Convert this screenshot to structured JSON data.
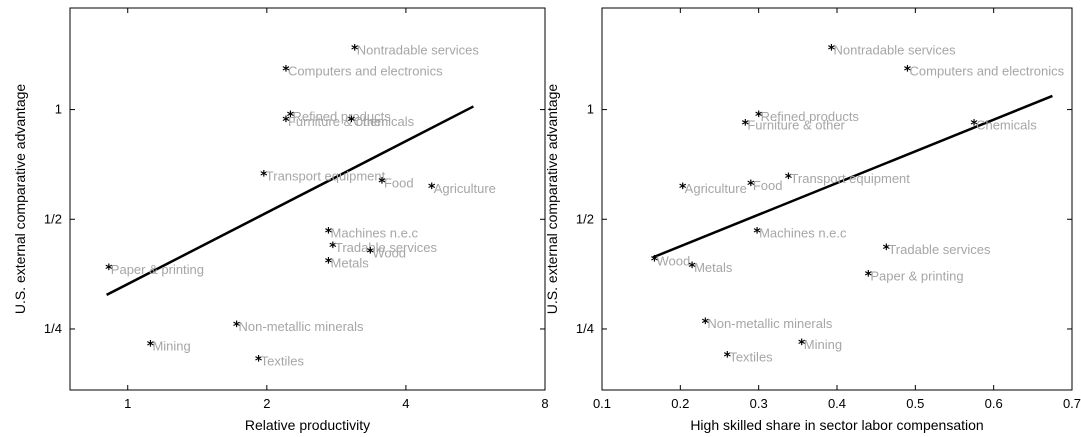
{
  "chart_data": [
    {
      "type": "scatter",
      "xlabel": "Relative productivity",
      "ylabel": "U.S. external comparative advantage",
      "x_scale": "log2",
      "y_scale": "log2",
      "xlim": [
        0.75,
        8
      ],
      "ylim": [
        0.17,
        1.9
      ],
      "x_ticks": [
        1,
        2,
        4,
        8
      ],
      "x_tick_labels": [
        "1",
        "2",
        "4",
        "8"
      ],
      "y_ticks": [
        0.25,
        0.5,
        1
      ],
      "y_tick_labels": [
        "1/4",
        "1/2",
        "1"
      ],
      "grid": false,
      "fit_line": [
        [
          0.9,
          0.31
        ],
        [
          5.6,
          1.02
        ]
      ],
      "points": [
        {
          "label": "Nontradable services",
          "x": 3.1,
          "y": 1.46
        },
        {
          "label": "Computers and electronics",
          "x": 2.2,
          "y": 1.28
        },
        {
          "label": "Refined products",
          "x": 2.25,
          "y": 0.96
        },
        {
          "label": "Furniture & other",
          "x": 2.2,
          "y": 0.93
        },
        {
          "label": "Chemicals",
          "x": 3.05,
          "y": 0.93
        },
        {
          "label": "Transport equipment",
          "x": 1.97,
          "y": 0.66
        },
        {
          "label": "Food",
          "x": 3.55,
          "y": 0.63
        },
        {
          "label": "Agriculture",
          "x": 4.55,
          "y": 0.61
        },
        {
          "label": "Machines n.e.c",
          "x": 2.72,
          "y": 0.46
        },
        {
          "label": "Tradable services",
          "x": 2.78,
          "y": 0.42
        },
        {
          "label": "Wood",
          "x": 3.35,
          "y": 0.405
        },
        {
          "label": "Metals",
          "x": 2.72,
          "y": 0.38
        },
        {
          "label": "Paper & printing",
          "x": 0.91,
          "y": 0.365
        },
        {
          "label": "Non-metallic minerals",
          "x": 1.72,
          "y": 0.255
        },
        {
          "label": "Mining",
          "x": 1.12,
          "y": 0.225
        },
        {
          "label": "Textiles",
          "x": 1.92,
          "y": 0.205
        }
      ]
    },
    {
      "type": "scatter",
      "xlabel": "High skilled share in sector labor compensation",
      "ylabel": "U.S. external comparative advantage",
      "x_scale": "linear",
      "y_scale": "log2",
      "xlim": [
        0.1,
        0.7
      ],
      "ylim": [
        0.17,
        1.9
      ],
      "x_ticks": [
        0.1,
        0.2,
        0.3,
        0.4,
        0.5,
        0.6,
        0.7
      ],
      "x_tick_labels": [
        "0.1",
        "0.2",
        "0.3",
        "0.4",
        "0.5",
        "0.6",
        "0.7"
      ],
      "y_ticks": [
        0.25,
        0.5,
        1
      ],
      "y_tick_labels": [
        "1/4",
        "1/2",
        "1"
      ],
      "grid": false,
      "fit_line": [
        [
          0.165,
          0.393
        ],
        [
          0.675,
          1.09
        ]
      ],
      "points": [
        {
          "label": "Nontradable services",
          "x": 0.393,
          "y": 1.46
        },
        {
          "label": "Computers and electronics",
          "x": 0.49,
          "y": 1.28
        },
        {
          "label": "Refined products",
          "x": 0.3,
          "y": 0.96
        },
        {
          "label": "Furniture & other",
          "x": 0.283,
          "y": 0.91
        },
        {
          "label": "Chemicals",
          "x": 0.575,
          "y": 0.91
        },
        {
          "label": "Transport equipment",
          "x": 0.338,
          "y": 0.65
        },
        {
          "label": "Food",
          "x": 0.29,
          "y": 0.62
        },
        {
          "label": "Agriculture",
          "x": 0.203,
          "y": 0.61
        },
        {
          "label": "Machines n.e.c",
          "x": 0.298,
          "y": 0.46
        },
        {
          "label": "Tradable services",
          "x": 0.463,
          "y": 0.415
        },
        {
          "label": "Wood",
          "x": 0.167,
          "y": 0.385
        },
        {
          "label": "Metals",
          "x": 0.215,
          "y": 0.37
        },
        {
          "label": "Paper & printing",
          "x": 0.44,
          "y": 0.35
        },
        {
          "label": "Non-metallic minerals",
          "x": 0.232,
          "y": 0.26
        },
        {
          "label": "Mining",
          "x": 0.355,
          "y": 0.227
        },
        {
          "label": "Textiles",
          "x": 0.26,
          "y": 0.21
        }
      ]
    }
  ]
}
